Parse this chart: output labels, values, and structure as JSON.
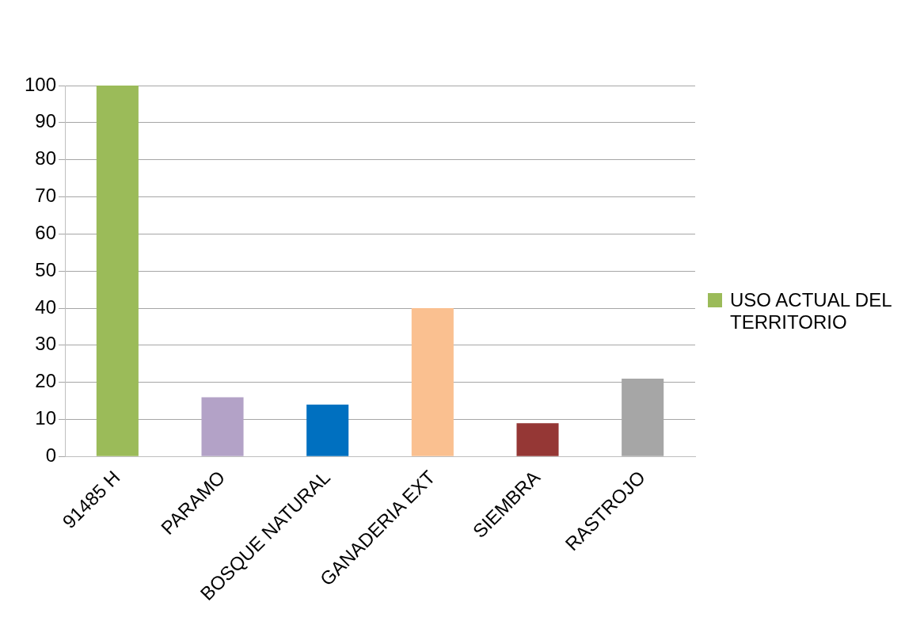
{
  "chart_data": {
    "type": "bar",
    "categories": [
      "91485 H",
      "PARAMO",
      "BOSQUE NATURAL",
      "GANADERIA EXT",
      "SIEMBRA",
      "RASTROJO"
    ],
    "series": [
      {
        "name": "USO ACTUAL DEL TERRITORIO",
        "color": "#9bbb59",
        "colors": [
          "#9bbb59",
          "#b3a2c7",
          "#0070c0",
          "#fac090",
          "#953735",
          "#a6a6a6"
        ],
        "values": [
          100,
          16,
          14,
          40,
          9,
          21
        ]
      }
    ],
    "ylim": [
      0,
      100
    ],
    "yticks": [
      0,
      10,
      20,
      30,
      40,
      50,
      60,
      70,
      80,
      90,
      100
    ],
    "grid": "y",
    "legend": "right"
  }
}
